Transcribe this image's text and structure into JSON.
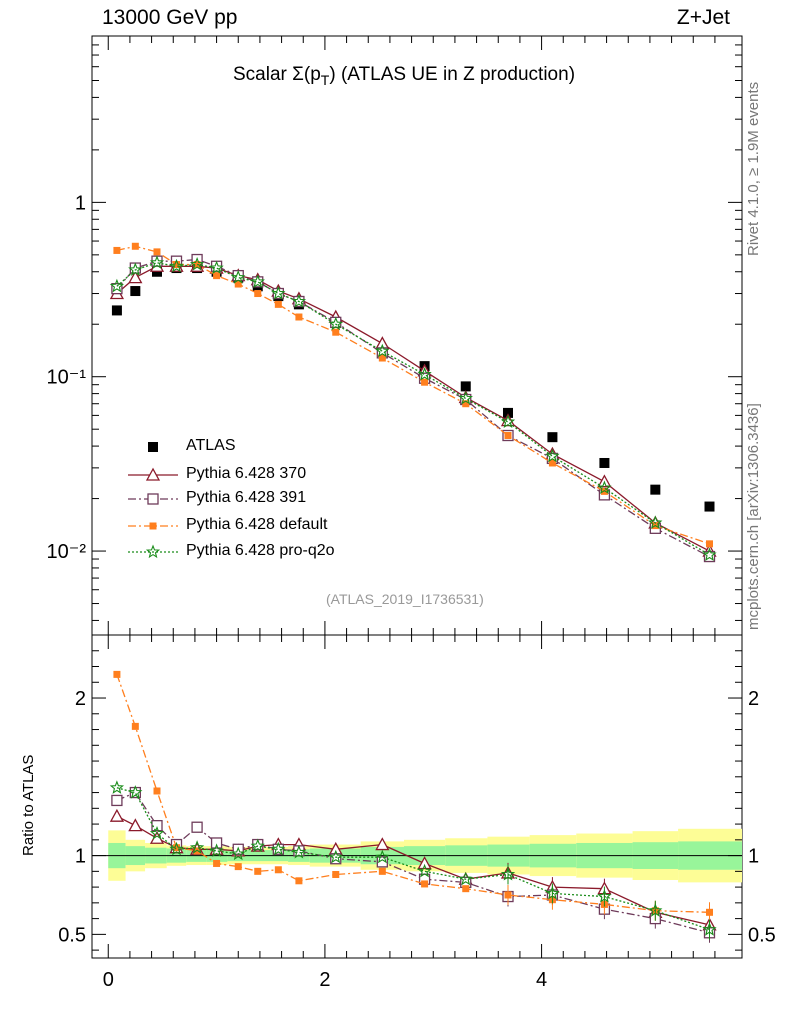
{
  "header": {
    "left": "13000 GeV pp",
    "right": "Z+Jet"
  },
  "side_labels": {
    "rivet": "Rivet 4.1.0, ≥ 1.9M events",
    "mcplots": "mcplots.cern.ch [arXiv:1306.3436]"
  },
  "plot_title": {
    "prefix": "Scalar Σ(p",
    "subscript": "T",
    "suffix": ") (ATLAS UE in Z production)"
  },
  "analysis_ref": "(ATLAS_2019_I1736531)",
  "ratio_ylabel": "Ratio to ATLAS",
  "chart_data": [
    {
      "type": "scatter",
      "panel": "main",
      "yscale": "log",
      "xlim": [
        -0.15,
        5.85
      ],
      "ylim": [
        0.0033,
        9
      ],
      "yticks": [
        {
          "value": 1,
          "label": "1"
        },
        {
          "value": 0.1,
          "label": "10⁻¹"
        },
        {
          "value": 0.01,
          "label": "10⁻²"
        }
      ],
      "x": [
        0.08,
        0.25,
        0.45,
        0.63,
        0.82,
        1.0,
        1.2,
        1.38,
        1.57,
        1.76,
        2.1,
        2.53,
        2.92,
        3.3,
        3.69,
        4.1,
        4.58,
        5.05,
        5.55
      ],
      "series": [
        {
          "name": "ATLAS",
          "color": "#000000",
          "marker": "filled-square",
          "line": "none",
          "values": [
            0.24,
            0.31,
            0.4,
            0.42,
            0.42,
            0.4,
            0.37,
            0.33,
            0.29,
            0.26,
            0.205,
            0.142,
            0.115,
            0.088,
            0.062,
            0.045,
            0.032,
            0.0225,
            0.018
          ]
        },
        {
          "name": "Pythia 6.428 370",
          "color": "#8b1a2b",
          "marker": "open-triangle",
          "line": "solid",
          "values": [
            0.3,
            0.37,
            0.43,
            0.43,
            0.43,
            0.42,
            0.38,
            0.36,
            0.31,
            0.28,
            0.22,
            0.155,
            0.108,
            0.076,
            0.056,
            0.036,
            0.025,
            0.0145,
            0.01
          ]
        },
        {
          "name": "Pythia 6.428 391",
          "color": "#6e3b5a",
          "marker": "open-square",
          "line": "dashdot",
          "values": [
            0.32,
            0.42,
            0.46,
            0.46,
            0.47,
            0.43,
            0.38,
            0.35,
            0.3,
            0.27,
            0.205,
            0.137,
            0.098,
            0.074,
            0.046,
            0.034,
            0.021,
            0.0135,
            0.0093
          ]
        },
        {
          "name": "Pythia 6.428 default",
          "color": "#ff7f1e",
          "marker": "filled-square-small",
          "line": "dashdot",
          "values": [
            0.53,
            0.56,
            0.52,
            0.44,
            0.44,
            0.38,
            0.34,
            0.3,
            0.26,
            0.22,
            0.18,
            0.128,
            0.093,
            0.07,
            0.046,
            0.032,
            0.022,
            0.014,
            0.011
          ]
        },
        {
          "name": "Pythia 6.428 pro-q2o",
          "color": "#1a8c1a",
          "marker": "open-star",
          "line": "dotted",
          "values": [
            0.33,
            0.41,
            0.45,
            0.43,
            0.44,
            0.42,
            0.37,
            0.35,
            0.3,
            0.27,
            0.2,
            0.14,
            0.103,
            0.075,
            0.055,
            0.035,
            0.023,
            0.0145,
            0.0095
          ]
        }
      ]
    },
    {
      "type": "scatter",
      "panel": "ratio",
      "ylabel": "Ratio to ATLAS",
      "xlim": [
        -0.15,
        5.85
      ],
      "ylim": [
        0.35,
        2.4
      ],
      "xticks": [
        0,
        2,
        4
      ],
      "yticks": [
        0.5,
        1,
        2
      ],
      "x": [
        0.08,
        0.25,
        0.45,
        0.63,
        0.82,
        1.0,
        1.2,
        1.38,
        1.57,
        1.76,
        2.1,
        2.53,
        2.92,
        3.3,
        3.69,
        4.1,
        4.58,
        5.05,
        5.55
      ],
      "bin_edges": [
        0.0,
        0.16,
        0.34,
        0.54,
        0.72,
        0.91,
        1.1,
        1.29,
        1.47,
        1.66,
        1.86,
        2.33,
        2.73,
        3.11,
        3.5,
        3.89,
        4.32,
        4.84,
        5.26,
        5.85
      ],
      "band_inner": [
        0.08,
        0.06,
        0.05,
        0.045,
        0.04,
        0.04,
        0.035,
        0.035,
        0.035,
        0.04,
        0.045,
        0.055,
        0.06,
        0.065,
        0.07,
        0.075,
        0.08,
        0.085,
        0.09
      ],
      "band_outer": [
        0.16,
        0.1,
        0.08,
        0.065,
        0.06,
        0.06,
        0.055,
        0.055,
        0.055,
        0.06,
        0.07,
        0.09,
        0.1,
        0.11,
        0.12,
        0.13,
        0.14,
        0.155,
        0.17
      ],
      "series": [
        {
          "name": "Pythia 6.428 370",
          "color": "#8b1a2b",
          "values": [
            1.25,
            1.19,
            1.11,
            1.05,
            1.04,
            1.04,
            1.03,
            1.06,
            1.07,
            1.07,
            1.04,
            1.07,
            0.95,
            0.85,
            0.89,
            0.8,
            0.79,
            0.64,
            0.56
          ]
        },
        {
          "name": "Pythia 6.428 391",
          "color": "#6e3b5a",
          "values": [
            1.35,
            1.4,
            1.19,
            1.07,
            1.18,
            1.08,
            1.04,
            1.07,
            1.04,
            1.03,
            0.98,
            0.96,
            0.85,
            0.83,
            0.74,
            0.75,
            0.66,
            0.6,
            0.51
          ]
        },
        {
          "name": "Pythia 6.428 default",
          "color": "#ff7f1e",
          "values": [
            2.15,
            1.82,
            1.41,
            1.05,
            1.03,
            0.95,
            0.93,
            0.9,
            0.91,
            0.84,
            0.88,
            0.9,
            0.82,
            0.79,
            0.75,
            0.72,
            0.69,
            0.65,
            0.64
          ]
        },
        {
          "name": "Pythia 6.428 pro-q2o",
          "color": "#1a8c1a",
          "values": [
            1.43,
            1.4,
            1.14,
            1.04,
            1.05,
            1.03,
            1.01,
            1.06,
            1.04,
            1.02,
            0.99,
            0.99,
            0.9,
            0.85,
            0.88,
            0.76,
            0.74,
            0.65,
            0.53
          ]
        }
      ]
    }
  ]
}
